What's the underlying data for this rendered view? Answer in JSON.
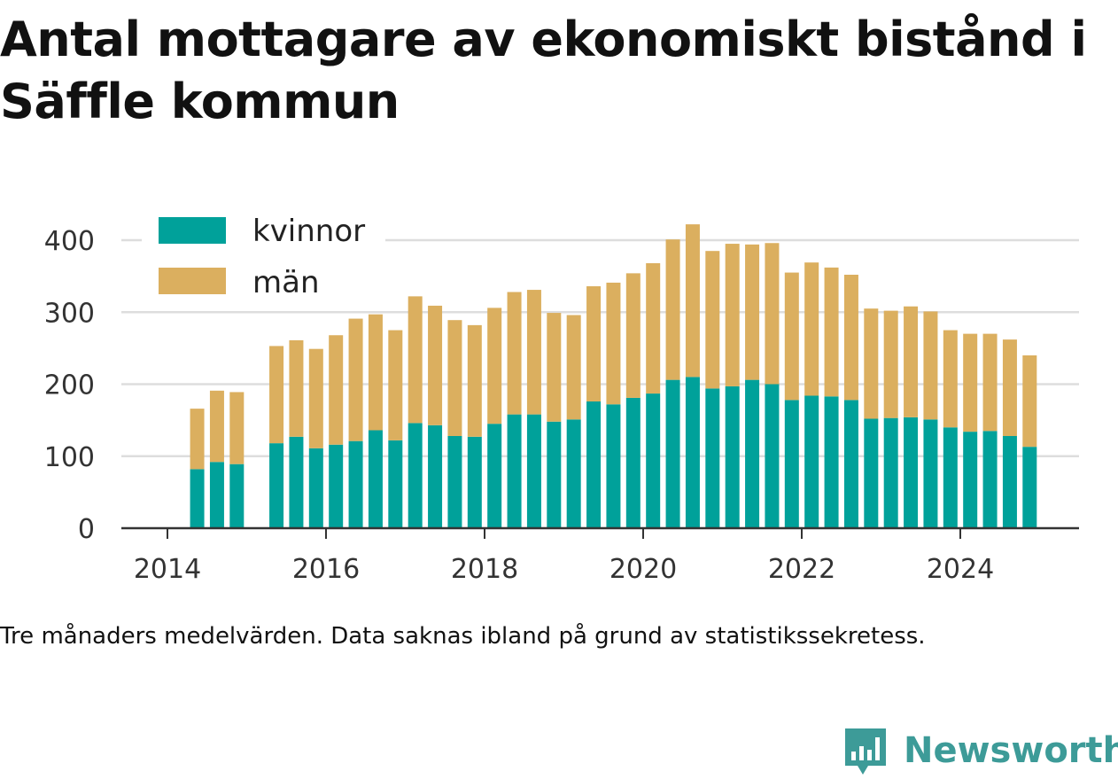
{
  "title": "Antal mottagare av ekonomiskt bistånd i Säffle kommun",
  "note": "Tre månaders medelvärden. Data saknas ibland på grund av statistikssekretess.",
  "brand": {
    "name": "Newsworthy",
    "logo_icon": "newsworthy-logo-icon",
    "color": "#3d9b98"
  },
  "chart_data": {
    "type": "bar",
    "stacked": true,
    "x_ticks": [
      "2014",
      "2016",
      "2018",
      "2020",
      "2022",
      "2024"
    ],
    "y_ticks": [
      0,
      100,
      200,
      300,
      400
    ],
    "ylim": [
      0,
      425
    ],
    "grid": true,
    "legend_position": "top-left",
    "categories": [
      "2014-Q2",
      "2014-Q3",
      "2014-Q4",
      "2015-Q2",
      "2015-Q3",
      "2015-Q4",
      "2016-Q1",
      "2016-Q2",
      "2016-Q3",
      "2016-Q4",
      "2017-Q1",
      "2017-Q2",
      "2017-Q3",
      "2017-Q4",
      "2018-Q1",
      "2018-Q2",
      "2018-Q3",
      "2018-Q4",
      "2019-Q1",
      "2019-Q2",
      "2019-Q3",
      "2019-Q4",
      "2020-Q1",
      "2020-Q2",
      "2020-Q3",
      "2020-Q4",
      "2021-Q1",
      "2021-Q2",
      "2021-Q3",
      "2021-Q4",
      "2022-Q1",
      "2022-Q2",
      "2022-Q3",
      "2022-Q4",
      "2023-Q1",
      "2023-Q2",
      "2023-Q3",
      "2023-Q4",
      "2024-Q1",
      "2024-Q2",
      "2024-Q3",
      "2024-Q4"
    ],
    "series": [
      {
        "name": "kvinnor",
        "color": "#00a19a",
        "values": [
          82,
          92,
          89,
          118,
          127,
          111,
          116,
          121,
          136,
          122,
          146,
          143,
          128,
          127,
          145,
          158,
          158,
          148,
          151,
          176,
          172,
          181,
          187,
          206,
          210,
          194,
          197,
          206,
          200,
          178,
          184,
          183,
          178,
          152,
          153,
          154,
          151,
          140,
          134,
          135,
          128,
          113
        ]
      },
      {
        "name": "män",
        "color": "#dbaf5f",
        "values": [
          84,
          99,
          100,
          135,
          134,
          138,
          152,
          170,
          161,
          153,
          176,
          166,
          161,
          155,
          161,
          170,
          173,
          151,
          145,
          160,
          169,
          173,
          181,
          195,
          212,
          191,
          198,
          188,
          196,
          177,
          185,
          179,
          174,
          153,
          149,
          154,
          150,
          135,
          136,
          135,
          134,
          127
        ]
      }
    ]
  }
}
